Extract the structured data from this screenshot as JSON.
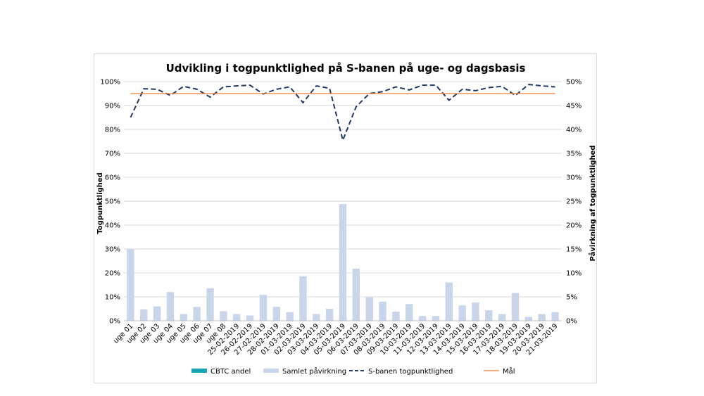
{
  "chart_data": {
    "type": "bar",
    "title": "Udvikling i togpunktlighed på S-banen på uge- og dagsbasis",
    "ylabel": "Togpunktlighed",
    "y2label": "Påvirkning af togpunktlighed",
    "ylim": [
      0,
      100
    ],
    "y2lim": [
      0,
      50
    ],
    "y_ticks": [
      "0%",
      "10%",
      "20%",
      "30%",
      "40%",
      "50%",
      "60%",
      "70%",
      "80%",
      "90%",
      "100%"
    ],
    "y2_ticks": [
      "0%",
      "5%",
      "10%",
      "15%",
      "20%",
      "25%",
      "30%",
      "35%",
      "40%",
      "45%",
      "50%"
    ],
    "grid": true,
    "legend_position": "bottom",
    "categories": [
      "uge 01",
      "uge 02",
      "uge 03",
      "uge 04",
      "uge 05",
      "uge 06",
      "uge 07",
      "uge 08",
      "25-02-2019",
      "26-02-2019",
      "27-02-2019",
      "28-02-2019",
      "01-03-2019",
      "02-03-2019",
      "03-03-2019",
      "04-03-2019",
      "05-03-2019",
      "06-03-2019",
      "07-03-2019",
      "08-03-2019",
      "09-03-2019",
      "10-03-2019",
      "11-03-2019",
      "12-03-2019",
      "13-03-2019",
      "14-03-2019",
      "15-03-2019",
      "16-03-2019",
      "17-03-2019",
      "18-03-2019",
      "19-03-2019",
      "20-03-2019",
      "21-03-2019"
    ],
    "series": [
      {
        "name": "CBTC andel",
        "type": "bar",
        "axis": "right",
        "color": "#17a5b4",
        "values": [
          0.2,
          0.9,
          0.3,
          0.4,
          0.2,
          0.2,
          0.2,
          0.2,
          0.1,
          0.1,
          0.2,
          0.1,
          0.1,
          0.1,
          0.1,
          0.4,
          0.5,
          0.5,
          0.1,
          0.1,
          0.2,
          0.1,
          0.2,
          0.1,
          0.6,
          0.5,
          0.4,
          0.3,
          0.1,
          0.3,
          0.1,
          0.1,
          0.2
        ]
      },
      {
        "name": "Samlet påvirkning",
        "type": "bar",
        "axis": "right",
        "color": "#c9d5ea",
        "values": [
          15.0,
          2.4,
          3.0,
          6.0,
          1.4,
          2.9,
          6.8,
          2.0,
          1.4,
          1.1,
          5.4,
          2.9,
          1.8,
          9.3,
          1.4,
          2.5,
          24.4,
          10.9,
          4.9,
          4.0,
          1.9,
          3.5,
          1.0,
          1.0,
          8.0,
          3.2,
          3.8,
          2.2,
          1.4,
          5.8,
          0.8,
          1.4,
          1.8
        ]
      },
      {
        "name": "S-banen togpunktlighed",
        "type": "line",
        "axis": "left",
        "color": "#1f3864",
        "dash": true,
        "values": [
          85.0,
          97.0,
          96.8,
          94.2,
          98.0,
          96.8,
          93.5,
          97.8,
          98.2,
          98.5,
          94.8,
          96.8,
          97.8,
          91.2,
          98.2,
          97.2,
          75.5,
          89.5,
          95.0,
          95.8,
          97.8,
          96.5,
          98.5,
          98.5,
          92.2,
          96.8,
          96.2,
          97.5,
          98.0,
          94.2,
          98.8,
          98.2,
          97.8
        ]
      },
      {
        "name": "Mål",
        "type": "line",
        "axis": "left",
        "color": "#ed7d31",
        "values": [
          95,
          95,
          95,
          95,
          95,
          95,
          95,
          95,
          95,
          95,
          95,
          95,
          95,
          95,
          95,
          95,
          95,
          95,
          95,
          95,
          95,
          95,
          95,
          95,
          95,
          95,
          95,
          95,
          95,
          95,
          95,
          95,
          95
        ]
      }
    ]
  }
}
